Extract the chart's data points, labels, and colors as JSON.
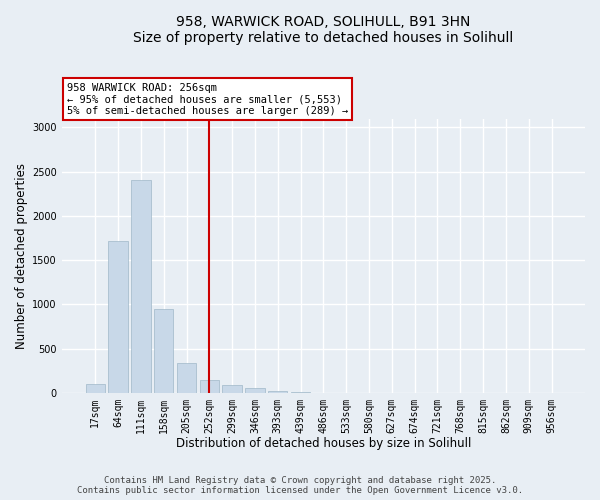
{
  "title_line1": "958, WARWICK ROAD, SOLIHULL, B91 3HN",
  "title_line2": "Size of property relative to detached houses in Solihull",
  "xlabel": "Distribution of detached houses by size in Solihull",
  "ylabel": "Number of detached properties",
  "categories": [
    "17sqm",
    "64sqm",
    "111sqm",
    "158sqm",
    "205sqm",
    "252sqm",
    "299sqm",
    "346sqm",
    "393sqm",
    "439sqm",
    "486sqm",
    "533sqm",
    "580sqm",
    "627sqm",
    "674sqm",
    "721sqm",
    "768sqm",
    "815sqm",
    "862sqm",
    "909sqm",
    "956sqm"
  ],
  "values": [
    100,
    1720,
    2400,
    950,
    340,
    140,
    90,
    50,
    20,
    5,
    2,
    1,
    0,
    0,
    0,
    0,
    0,
    0,
    0,
    0,
    0
  ],
  "bar_color": "#c8d8e8",
  "bar_edge_color": "#a0b8c8",
  "vline_x_index": 5,
  "vline_color": "#cc0000",
  "annotation_line1": "958 WARWICK ROAD: 256sqm",
  "annotation_line2": "← 95% of detached houses are smaller (5,553)",
  "annotation_line3": "5% of semi-detached houses are larger (289) →",
  "annotation_box_color": "#ffffff",
  "annotation_box_edge": "#cc0000",
  "ylim": [
    0,
    3100
  ],
  "yticks": [
    0,
    500,
    1000,
    1500,
    2000,
    2500,
    3000
  ],
  "footer_line1": "Contains HM Land Registry data © Crown copyright and database right 2025.",
  "footer_line2": "Contains public sector information licensed under the Open Government Licence v3.0.",
  "bg_color": "#e8eef4",
  "plot_bg_color": "#e8eef4",
  "grid_color": "#ffffff",
  "title_fontsize": 10,
  "label_fontsize": 8.5,
  "tick_fontsize": 7,
  "footer_fontsize": 6.5
}
